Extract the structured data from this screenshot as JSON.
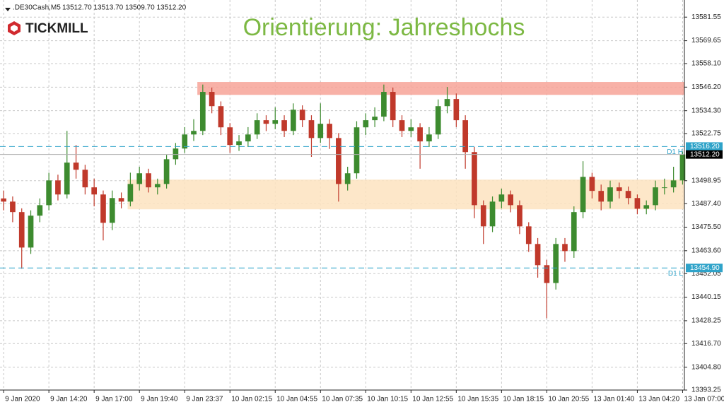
{
  "header": {
    "symbol": ".DE30Cash,M5",
    "quote": "13512.70 13513.70 13509.70 13512.20",
    "logo": "TICKMILL"
  },
  "chart_data": {
    "type": "candlestick",
    "title": "Orientierung: Jahreshochs",
    "up_color": "#3d8b2f",
    "down_color": "#c0392b",
    "grid": true,
    "open": [
      13490.0,
      13488.4,
      13483.1,
      13465.2,
      13481.3,
      13486.6,
      13499.1,
      13492.0,
      13508.1,
      13504.5,
      13495.6,
      13492.0,
      13477.7,
      13490.2,
      13488.4,
      13497.3,
      13502.7,
      13495.6,
      13497.3,
      13509.8,
      13515.2,
      13522.3,
      13524.1,
      13543.8,
      13536.6,
      13525.9,
      13517.0,
      13518.8,
      13522.3,
      13529.5,
      13527.7,
      13529.5,
      13524.1,
      13534.8,
      13529.5,
      13520.5,
      13527.7,
      13520.5,
      13497.3,
      13502.7,
      13525.9,
      13529.5,
      13531.3,
      13543.8,
      13529.5,
      13524.1,
      13525.9,
      13518.8,
      13522.3,
      13536.6,
      13540.2,
      13529.5,
      13513.4,
      13486.6,
      13475.9,
      13488.4,
      13492.0,
      13486.6,
      13475.9,
      13467.0,
      13456.3,
      13447.3,
      13467.0,
      13463.4,
      13483.1,
      13500.9,
      13493.8,
      13488.4,
      13495.6,
      13493.8,
      13490.2,
      13484.8,
      13486.6,
      13495.6,
      13495.6,
      13499.1
    ],
    "high": [
      13494.0,
      13491.0,
      13485.0,
      13484.0,
      13490.0,
      13503.0,
      13502.0,
      13524.1,
      13517.0,
      13507.0,
      13500.0,
      13494.0,
      13494.0,
      13493.0,
      13503.0,
      13506.0,
      13505.0,
      13500.0,
      13512.0,
      13518.0,
      13526.0,
      13530.0,
      13547.5,
      13546.0,
      13539.0,
      13528.0,
      13522.0,
      13526.0,
      13533.0,
      13532.0,
      13536.0,
      13532.0,
      13538.0,
      13537.0,
      13532.0,
      13538.0,
      13530.0,
      13523.0,
      13506.0,
      13529.0,
      13533.0,
      13536.0,
      13547.5,
      13546.0,
      13532.0,
      13530.0,
      13528.0,
      13526.0,
      13540.0,
      13546.3,
      13543.0,
      13532.0,
      13516.0,
      13489.0,
      13491.0,
      13495.0,
      13494.0,
      13489.0,
      13478.0,
      13470.0,
      13459.0,
      13470.0,
      13470.0,
      13486.0,
      13508.8,
      13503.0,
      13497.0,
      13499.0,
      13498.0,
      13496.0,
      13492.0,
      13489.0,
      13499.0,
      13500.0,
      13506.0,
      13513.7
    ],
    "low": [
      13484.0,
      13478.0,
      13454.5,
      13462.0,
      13478.0,
      13484.0,
      13489.0,
      13490.0,
      13500.0,
      13492.0,
      13486.0,
      13468.8,
      13474.0,
      13485.0,
      13486.0,
      13494.0,
      13493.0,
      13492.0,
      13495.0,
      13507.0,
      13513.0,
      13519.0,
      13522.0,
      13533.0,
      13522.0,
      13513.0,
      13514.0,
      13516.0,
      13520.0,
      13524.0,
      13525.0,
      13521.0,
      13522.0,
      13526.0,
      13511.0,
      13518.0,
      13515.0,
      13488.4,
      13494.0,
      13500.0,
      13522.0,
      13526.0,
      13529.0,
      13526.0,
      13521.0,
      13521.0,
      13505.0,
      13516.0,
      13520.0,
      13533.0,
      13526.0,
      13505.0,
      13480.0,
      13467.0,
      13473.0,
      13485.0,
      13483.0,
      13472.0,
      13463.0,
      13450.0,
      13429.5,
      13444.0,
      13458.0,
      13460.0,
      13480.0,
      13490.0,
      13484.0,
      13485.0,
      13490.0,
      13487.0,
      13482.0,
      13482.0,
      13484.0,
      13492.0,
      13493.0,
      13497.0
    ],
    "close": [
      13488.4,
      13483.1,
      13465.2,
      13481.3,
      13486.6,
      13499.1,
      13492.0,
      13508.1,
      13504.5,
      13495.6,
      13492.0,
      13477.7,
      13490.2,
      13488.4,
      13497.3,
      13502.7,
      13495.6,
      13497.3,
      13509.8,
      13515.2,
      13522.3,
      13524.1,
      13543.8,
      13536.6,
      13525.9,
      13517.0,
      13518.8,
      13522.3,
      13529.5,
      13527.7,
      13529.5,
      13524.1,
      13534.8,
      13529.5,
      13520.5,
      13527.7,
      13520.5,
      13497.3,
      13502.7,
      13525.9,
      13529.5,
      13531.3,
      13543.8,
      13529.5,
      13524.1,
      13525.9,
      13518.8,
      13522.3,
      13536.6,
      13540.2,
      13529.5,
      13513.4,
      13486.6,
      13475.9,
      13488.4,
      13492.0,
      13486.6,
      13475.9,
      13467.0,
      13456.3,
      13447.3,
      13467.0,
      13463.4,
      13483.1,
      13500.9,
      13493.8,
      13488.4,
      13495.6,
      13493.8,
      13490.2,
      13484.8,
      13486.6,
      13495.6,
      13495.6,
      13499.1,
      13512.2
    ],
    "xlim": [
      -0.4,
      75.2
    ],
    "xticks": [
      {
        "value": 0,
        "label": "9 Jan 2020"
      },
      {
        "value": 5,
        "label": "9 Jan 14:20"
      },
      {
        "value": 10,
        "label": "9 Jan 17:00"
      },
      {
        "value": 15,
        "label": "9 Jan 19:40"
      },
      {
        "value": 20,
        "label": "9 Jan 23:37"
      },
      {
        "value": 25,
        "label": "10 Jan 02:15"
      },
      {
        "value": 30,
        "label": "10 Jan 04:55"
      },
      {
        "value": 35,
        "label": "10 Jan 07:35"
      },
      {
        "value": 40,
        "label": "10 Jan 10:15"
      },
      {
        "value": 45,
        "label": "10 Jan 12:55"
      },
      {
        "value": 50,
        "label": "10 Jan 15:35"
      },
      {
        "value": 55,
        "label": "10 Jan 18:15"
      },
      {
        "value": 60,
        "label": "10 Jan 20:55"
      },
      {
        "value": 65,
        "label": "13 Jan 01:40"
      },
      {
        "value": 70,
        "label": "13 Jan 04:20"
      },
      {
        "value": 75,
        "label": "13 Jan 07:00"
      }
    ],
    "ylim": [
      13393.25,
      13590.2
    ],
    "yticks": [
      13581.55,
      13569.65,
      {
        "value": 13558.1,
        "label": "13558.10"
      },
      {
        "value": 13546.2,
        "label": "13546.20"
      },
      {
        "value": 13534.3,
        "label": "13534.30"
      },
      13522.75,
      13498.95,
      {
        "value": 13487.4,
        "label": "13487.40"
      },
      {
        "value": 13475.5,
        "label": "13475.50"
      },
      {
        "value": 13463.6,
        "label": "13463.60"
      },
      13452.05,
      13440.15,
      13428.25,
      {
        "value": 13416.7,
        "label": "13416.70"
      },
      {
        "value": 13404.8,
        "label": "13404.80"
      },
      13393.25
    ],
    "zones": [
      {
        "from": 13542.3,
        "to": 13548.8,
        "x_start": 21.4,
        "color": "#f7a398"
      },
      {
        "from": 13484.5,
        "to": 13499.5,
        "x_start": 13.7,
        "color": "#fde3bf"
      }
    ],
    "levels": [
      {
        "name": "D1 H",
        "value": 13516.2,
        "label": "13516.20",
        "color": "#2fa3c9"
      },
      {
        "name": "D1 L",
        "value": 13454.9,
        "label": "13454.90",
        "color": "#2fa3c9"
      }
    ],
    "current_price": {
      "value": 13512.2,
      "label": "13512.20",
      "color": "#000000"
    }
  }
}
